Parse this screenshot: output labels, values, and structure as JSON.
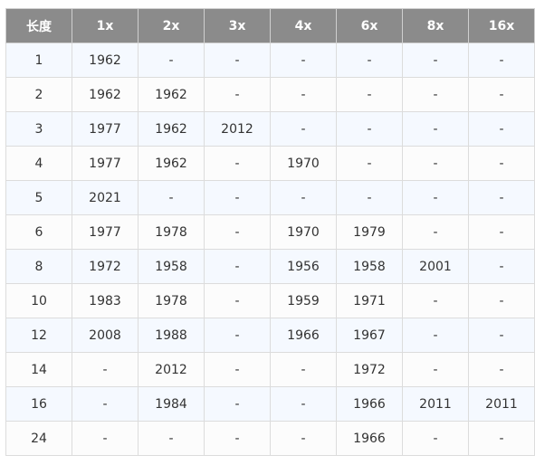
{
  "table": {
    "header": [
      "长度",
      "1x",
      "2x",
      "3x",
      "4x",
      "6x",
      "8x",
      "16x"
    ],
    "rows": [
      [
        "1",
        "1962",
        "-",
        "-",
        "-",
        "-",
        "-",
        "-"
      ],
      [
        "2",
        "1962",
        "1962",
        "-",
        "-",
        "-",
        "-",
        "-"
      ],
      [
        "3",
        "1977",
        "1962",
        "2012",
        "-",
        "-",
        "-",
        "-"
      ],
      [
        "4",
        "1977",
        "1962",
        "-",
        "1970",
        "-",
        "-",
        "-"
      ],
      [
        "5",
        "2021",
        "-",
        "-",
        "-",
        "-",
        "-",
        "-"
      ],
      [
        "6",
        "1977",
        "1978",
        "-",
        "1970",
        "1979",
        "-",
        "-"
      ],
      [
        "8",
        "1972",
        "1958",
        "-",
        "1956",
        "1958",
        "2001",
        "-"
      ],
      [
        "10",
        "1983",
        "1978",
        "-",
        "1959",
        "1971",
        "-",
        "-"
      ],
      [
        "12",
        "2008",
        "1988",
        "-",
        "1966",
        "1967",
        "-",
        "-"
      ],
      [
        "14",
        "-",
        "2012",
        "-",
        "-",
        "1972",
        "-",
        "-"
      ],
      [
        "16",
        "-",
        "1984",
        "-",
        "-",
        "1966",
        "2011",
        "2011"
      ],
      [
        "24",
        "-",
        "-",
        "-",
        "-",
        "1966",
        "-",
        "-"
      ]
    ]
  }
}
